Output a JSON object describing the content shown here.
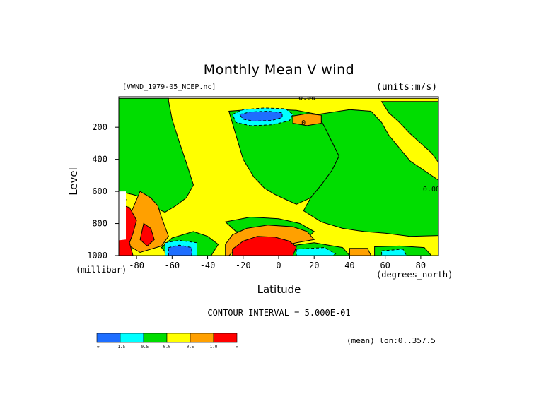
{
  "chart_data": {
    "type": "heatmap",
    "title": "Monthly Mean V wind",
    "file_tag": "[VWND_1979-05_NCEP.nc]",
    "units": "(units:m/s)",
    "xlabel": "Latitude",
    "x_units": "(degrees_north)",
    "ylabel": "Level",
    "y_units": "(millibar)",
    "x_range": [
      -90,
      90
    ],
    "y_range": [
      1000,
      10
    ],
    "x_ticks": [
      -80,
      -60,
      -40,
      -20,
      0,
      20,
      40,
      60,
      80
    ],
    "y_ticks": [
      200,
      400,
      600,
      800,
      1000
    ],
    "contour_interval_text": "CONTOUR INTERVAL = 5.000E-01",
    "contour_labels": [
      {
        "text": "0.00",
        "lat": 16,
        "lev": 30
      },
      {
        "text": "0",
        "lat": 14,
        "lev": 185
      },
      {
        "text": "0.00",
        "lat": 86,
        "lev": 600
      }
    ],
    "mean_note": "(mean) lon:0..357.5",
    "colorbar": {
      "colors": [
        "#1e6eff",
        "#00ffff",
        "#00dd00",
        "#ffff00",
        "#ffa000",
        "#ff0000"
      ],
      "labels": [
        "-∞",
        "-1.5",
        "-0.5",
        "0.0",
        "0.5",
        "1.0",
        "∞"
      ]
    },
    "regions": [
      {
        "level": 0.0,
        "polys": [
          [
            [
              -90,
              20
            ],
            [
              90,
              20
            ],
            [
              90,
              1000
            ],
            [
              -90,
              1000
            ]
          ]
        ]
      },
      {
        "level": -0.5,
        "polys": [
          [
            [
              -90,
              20
            ],
            [
              -62,
              20
            ],
            [
              -62,
              35
            ],
            [
              -60,
              150
            ],
            [
              -56,
              290
            ],
            [
              -52,
              420
            ],
            [
              -48,
              560
            ],
            [
              -52,
              640
            ],
            [
              -58,
              690
            ],
            [
              -64,
              730
            ],
            [
              -70,
              700
            ],
            [
              -76,
              640
            ],
            [
              -82,
              620
            ],
            [
              -90,
              600
            ]
          ],
          [
            [
              -28,
              100
            ],
            [
              -24,
              250
            ],
            [
              -20,
              400
            ],
            [
              -14,
              510
            ],
            [
              -8,
              580
            ],
            [
              -2,
              620
            ],
            [
              4,
              650
            ],
            [
              10,
              680
            ],
            [
              18,
              640
            ],
            [
              24,
              560
            ],
            [
              30,
              470
            ],
            [
              34,
              380
            ],
            [
              30,
              290
            ],
            [
              26,
              200
            ],
            [
              22,
              120
            ],
            [
              10,
              95
            ],
            [
              -10,
              85
            ]
          ],
          [
            [
              22,
              120
            ],
            [
              26,
              200
            ],
            [
              30,
              290
            ],
            [
              34,
              380
            ],
            [
              30,
              470
            ],
            [
              24,
              560
            ],
            [
              18,
              640
            ],
            [
              14,
              720
            ],
            [
              24,
              790
            ],
            [
              36,
              830
            ],
            [
              48,
              850
            ],
            [
              60,
              860
            ],
            [
              74,
              880
            ],
            [
              90,
              875
            ],
            [
              90,
              530
            ],
            [
              82,
              470
            ],
            [
              74,
              410
            ],
            [
              68,
              330
            ],
            [
              62,
              250
            ],
            [
              58,
              170
            ],
            [
              52,
              100
            ],
            [
              40,
              90
            ]
          ],
          [
            [
              58,
              40
            ],
            [
              90,
              40
            ],
            [
              90,
              420
            ],
            [
              86,
              360
            ],
            [
              80,
              300
            ],
            [
              74,
              240
            ],
            [
              68,
              170
            ],
            [
              62,
              110
            ]
          ],
          [
            [
              -30,
              790
            ],
            [
              -16,
              760
            ],
            [
              0,
              770
            ],
            [
              12,
              800
            ],
            [
              20,
              850
            ],
            [
              16,
              890
            ],
            [
              4,
              880
            ],
            [
              -10,
              860
            ],
            [
              -24,
              850
            ]
          ],
          [
            [
              -48,
              850
            ],
            [
              -40,
              880
            ],
            [
              -34,
              930
            ],
            [
              -38,
              1000
            ],
            [
              -62,
              1000
            ],
            [
              -66,
              950
            ],
            [
              -60,
              890
            ]
          ],
          [
            [
              6,
              940
            ],
            [
              20,
              920
            ],
            [
              36,
              950
            ],
            [
              40,
              1000
            ],
            [
              6,
              1000
            ]
          ],
          [
            [
              54,
              945
            ],
            [
              68,
              940
            ],
            [
              82,
              950
            ],
            [
              86,
              1000
            ],
            [
              54,
              1000
            ]
          ]
        ]
      },
      {
        "level": -1.0,
        "polys": [
          [
            [
              -26,
              120
            ],
            [
              -20,
              90
            ],
            [
              -8,
              80
            ],
            [
              4,
              85
            ],
            [
              8,
              120
            ],
            [
              6,
              160
            ],
            [
              -4,
              185
            ],
            [
              -16,
              190
            ],
            [
              -24,
              170
            ]
          ],
          [
            [
              -64,
              920
            ],
            [
              -56,
              905
            ],
            [
              -46,
              920
            ],
            [
              -46,
              1000
            ],
            [
              -64,
              1000
            ]
          ],
          [
            [
              10,
              960
            ],
            [
              26,
              950
            ],
            [
              32,
              990
            ],
            [
              30,
              1000
            ],
            [
              10,
              1000
            ]
          ],
          [
            [
              58,
              970
            ],
            [
              70,
              960
            ],
            [
              72,
              1000
            ],
            [
              58,
              1000
            ]
          ]
        ]
      },
      {
        "level": -1.5,
        "polys": [
          [
            [
              -22,
              120
            ],
            [
              -16,
              105
            ],
            [
              -6,
              100
            ],
            [
              2,
              110
            ],
            [
              2,
              140
            ],
            [
              -4,
              158
            ],
            [
              -14,
              162
            ],
            [
              -20,
              150
            ]
          ],
          [
            [
              -62,
              950
            ],
            [
              -56,
              935
            ],
            [
              -49,
              950
            ],
            [
              -49,
              1000
            ],
            [
              -62,
              1000
            ]
          ]
        ]
      },
      {
        "level": 0.5,
        "polys": [
          [
            [
              8,
              130
            ],
            [
              16,
              115
            ],
            [
              24,
              125
            ],
            [
              24,
              175
            ],
            [
              16,
              190
            ],
            [
              8,
              175
            ]
          ],
          [
            [
              -78,
              600
            ],
            [
              -72,
              640
            ],
            [
              -68,
              690
            ],
            [
              -66,
              760
            ],
            [
              -64,
              820
            ],
            [
              -62,
              880
            ],
            [
              -66,
              940
            ],
            [
              -72,
              960
            ],
            [
              -78,
              980
            ],
            [
              -84,
              940
            ],
            [
              -88,
              860
            ]
          ],
          [
            [
              -90,
              640
            ],
            [
              -86,
              650
            ],
            [
              -88,
              760
            ],
            [
              -90,
              800
            ]
          ],
          [
            [
              -26,
              870
            ],
            [
              -18,
              830
            ],
            [
              -6,
              810
            ],
            [
              8,
              820
            ],
            [
              16,
              850
            ],
            [
              20,
              900
            ],
            [
              10,
              920
            ],
            [
              2,
              940
            ],
            [
              -6,
              950
            ],
            [
              -16,
              955
            ],
            [
              -24,
              960
            ],
            [
              -28,
              1000
            ],
            [
              -30,
              1000
            ],
            [
              -30,
              930
            ]
          ],
          [
            [
              40,
              955
            ],
            [
              50,
              955
            ],
            [
              52,
              1000
            ],
            [
              40,
              1000
            ]
          ]
        ]
      },
      {
        "level": 1.0,
        "polys": [
          [
            [
              -90,
              680
            ],
            [
              -84,
              700
            ],
            [
              -80,
              780
            ],
            [
              -82,
              860
            ],
            [
              -84,
              920
            ],
            [
              -82,
              1000
            ],
            [
              -90,
              1000
            ]
          ],
          [
            [
              -26,
              960
            ],
            [
              -20,
              910
            ],
            [
              -12,
              880
            ],
            [
              -2,
              885
            ],
            [
              6,
              910
            ],
            [
              10,
              945
            ],
            [
              8,
              1000
            ],
            [
              -26,
              1000
            ]
          ],
          [
            [
              -76,
              800
            ],
            [
              -72,
              830
            ],
            [
              -70,
              900
            ],
            [
              -74,
              940
            ],
            [
              -78,
              900
            ]
          ]
        ]
      }
    ],
    "white_patches": [
      [
        [
          -90,
          600
        ],
        [
          -86,
          600
        ],
        [
          -86,
          900
        ],
        [
          -90,
          905
        ]
      ]
    ]
  }
}
